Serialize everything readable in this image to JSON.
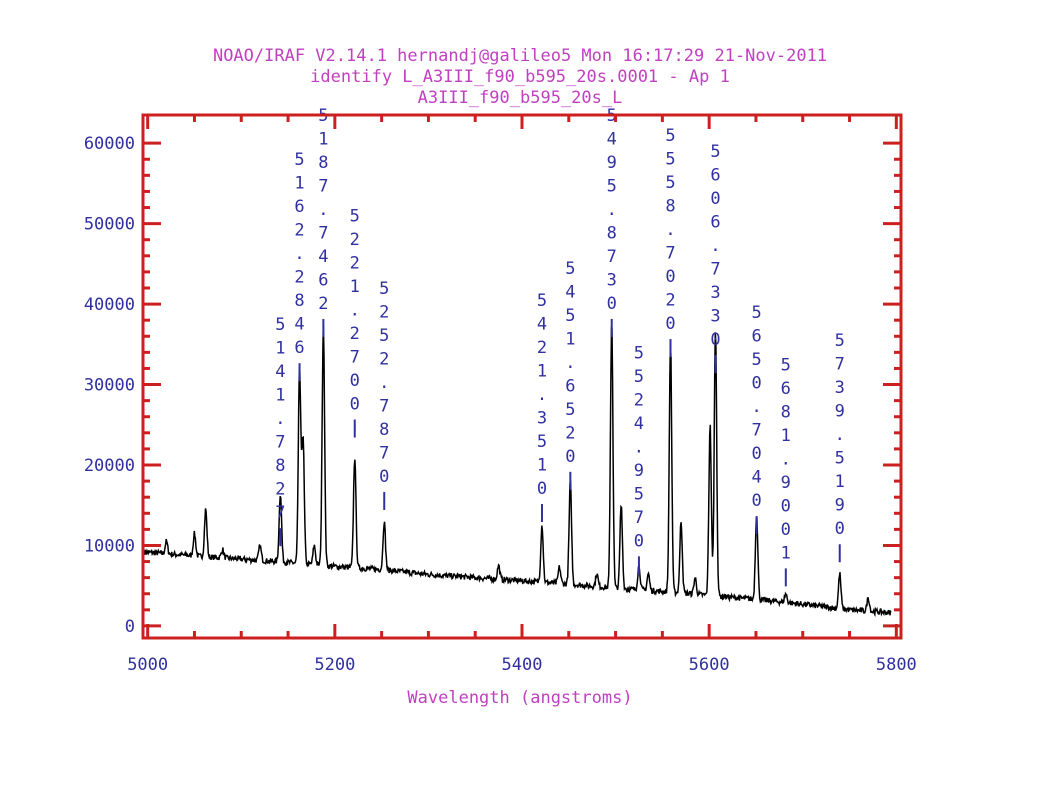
{
  "chart_data": {
    "type": "line",
    "title": [
      "NOAO/IRAF V2.14.1 hernandj@galileo5 Mon 16:17:29 21-Nov-2011",
      "identify L_A3III_f90_b595_20s.0001 - Ap 1",
      "A3III_f90_b595_20s_L"
    ],
    "xlabel": "Wavelength (angstroms)",
    "ylabel": "",
    "xlim": [
      4995,
      5805
    ],
    "ylim": [
      -1500,
      63500
    ],
    "x_ticks": [
      5000,
      5200,
      5400,
      5600,
      5800
    ],
    "y_ticks": [
      0,
      10000,
      20000,
      30000,
      40000,
      50000,
      60000
    ],
    "x_tick_labels": [
      "5000",
      "5200",
      "5400",
      "5600",
      "5800"
    ],
    "y_tick_labels": [
      "0",
      "10000",
      "20000",
      "30000",
      "40000",
      "50000",
      "60000"
    ],
    "grid": false,
    "colors": {
      "frame": "#cc2020",
      "text_title": "#c040c0",
      "text_labels": "#3030a0",
      "spectrum": "#000000"
    },
    "continuum": [
      [
        4995,
        9200
      ],
      [
        5050,
        8700
      ],
      [
        5100,
        8300
      ],
      [
        5150,
        7900
      ],
      [
        5200,
        7400
      ],
      [
        5250,
        7000
      ],
      [
        5300,
        6400
      ],
      [
        5350,
        6000
      ],
      [
        5400,
        5600
      ],
      [
        5450,
        5200
      ],
      [
        5500,
        4700
      ],
      [
        5550,
        4300
      ],
      [
        5600,
        3800
      ],
      [
        5650,
        3300
      ],
      [
        5700,
        2700
      ],
      [
        5750,
        2000
      ],
      [
        5800,
        1600
      ]
    ],
    "peaks": [
      [
        5020,
        10500
      ],
      [
        5050,
        11500
      ],
      [
        5062,
        14500
      ],
      [
        5080,
        9500
      ],
      [
        5120,
        10000
      ],
      [
        5141.78,
        16500
      ],
      [
        5162.28,
        32000
      ],
      [
        5166,
        23500
      ],
      [
        5187.75,
        37500
      ],
      [
        5178,
        10000
      ],
      [
        5221.27,
        21000
      ],
      [
        5252.79,
        13000
      ],
      [
        5375,
        7500
      ],
      [
        5421.35,
        12500
      ],
      [
        5440,
        7300
      ],
      [
        5451.65,
        18000
      ],
      [
        5480,
        6500
      ],
      [
        5495.87,
        38000
      ],
      [
        5506,
        15000
      ],
      [
        5524.96,
        7500
      ],
      [
        5535,
        6500
      ],
      [
        5558.7,
        35500
      ],
      [
        5570,
        13000
      ],
      [
        5585,
        6000
      ],
      [
        5606.73,
        37000
      ],
      [
        5601,
        25000
      ],
      [
        5650.7,
        14000
      ],
      [
        5681.9,
        4000
      ],
      [
        5739.52,
        6500
      ],
      [
        5770,
        3500
      ]
    ],
    "identified_lines": [
      {
        "label": "5141.7827",
        "x": 5141.7827,
        "y_label_top": 38500
      },
      {
        "label": "5162.2846",
        "x": 5162.2846,
        "y_label_top": 59000
      },
      {
        "label": "5187.7462",
        "x": 5187.7462,
        "y_label_top": 64500
      },
      {
        "label": "5221.2700",
        "x": 5221.27,
        "y_label_top": 52000
      },
      {
        "label": "5252.7870",
        "x": 5252.787,
        "y_label_top": 43000
      },
      {
        "label": "5421.3510",
        "x": 5421.351,
        "y_label_top": 41500
      },
      {
        "label": "5451.6520",
        "x": 5451.652,
        "y_label_top": 45500
      },
      {
        "label": "5495.8730",
        "x": 5495.873,
        "y_label_top": 64500
      },
      {
        "label": "5524.9570",
        "x": 5524.957,
        "y_label_top": 35000
      },
      {
        "label": "5558.7020",
        "x": 5558.702,
        "y_label_top": 62000
      },
      {
        "label": "5606.7330",
        "x": 5606.733,
        "y_label_top": 60000
      },
      {
        "label": "5650.7040",
        "x": 5650.704,
        "y_label_top": 40000
      },
      {
        "label": "5681.9001",
        "x": 5681.9001,
        "y_label_top": 33500
      },
      {
        "label": "5739.5190",
        "x": 5739.519,
        "y_label_top": 36500
      }
    ]
  }
}
